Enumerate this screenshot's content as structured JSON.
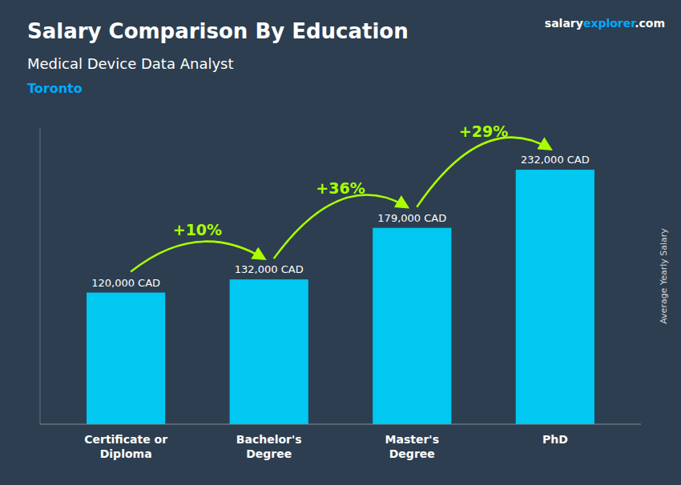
{
  "chart_data": {
    "type": "bar",
    "title": "Salary Comparison By Education",
    "subtitle": "Medical Device Data Analyst",
    "location": "Toronto",
    "ylabel": "Average Yearly Salary",
    "source_parts": [
      "salary",
      "explorer",
      ".com"
    ],
    "categories": [
      "Certificate or\nDiploma",
      "Bachelor's\nDegree",
      "Master's\nDegree",
      "PhD"
    ],
    "values": [
      120000,
      132000,
      179000,
      232000
    ],
    "value_labels": [
      "120,000 CAD",
      "132,000 CAD",
      "179,000 CAD",
      "232,000 CAD"
    ],
    "data_labels": true,
    "annotations": [
      {
        "text": "+10%",
        "color": "#aaff00"
      },
      {
        "text": "+36%",
        "color": "#aaff00"
      },
      {
        "text": "+29%",
        "color": "#aaff00"
      }
    ],
    "color": "#00c8f0",
    "ylim": [
      0,
      270000
    ],
    "grid": false,
    "tick_labels": "x"
  }
}
